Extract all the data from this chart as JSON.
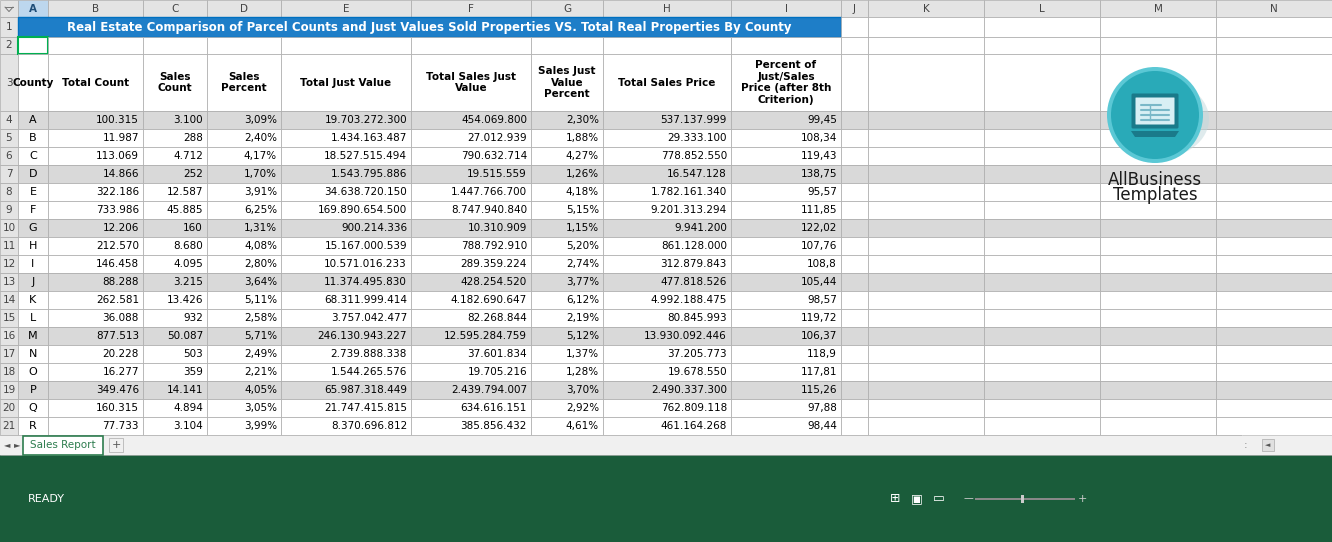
{
  "title": "Real Estate Comparison of Parcel Counts and Just Values Sold Properties VS. Total Real Properties By County",
  "col_headers": [
    "County",
    "Total Count",
    "Sales\nCount",
    "Sales\nPercent",
    "Total Just Value",
    "Total Sales Just\nValue",
    "Sales Just\nValue\nPercent",
    "Total Sales Price",
    "Percent of\nJust/Sales\nPrice (after 8th\nCriterion)"
  ],
  "row_labels": [
    "A",
    "B",
    "C",
    "D",
    "E",
    "F",
    "G",
    "H",
    "I",
    "J",
    "K",
    "L",
    "M",
    "N",
    "O",
    "P",
    "Q",
    "R"
  ],
  "data": [
    [
      "100.315",
      "3.100",
      "3,09%",
      "19.703.272.300",
      "454.069.800",
      "2,30%",
      "537.137.999",
      "99,45"
    ],
    [
      "11.987",
      "288",
      "2,40%",
      "1.434.163.487",
      "27.012.939",
      "1,88%",
      "29.333.100",
      "108,34"
    ],
    [
      "113.069",
      "4.712",
      "4,17%",
      "18.527.515.494",
      "790.632.714",
      "4,27%",
      "778.852.550",
      "119,43"
    ],
    [
      "14.866",
      "252",
      "1,70%",
      "1.543.795.886",
      "19.515.559",
      "1,26%",
      "16.547.128",
      "138,75"
    ],
    [
      "322.186",
      "12.587",
      "3,91%",
      "34.638.720.150",
      "1.447.766.700",
      "4,18%",
      "1.782.161.340",
      "95,57"
    ],
    [
      "733.986",
      "45.885",
      "6,25%",
      "169.890.654.500",
      "8.747.940.840",
      "5,15%",
      "9.201.313.294",
      "111,85"
    ],
    [
      "12.206",
      "160",
      "1,31%",
      "900.214.336",
      "10.310.909",
      "1,15%",
      "9.941.200",
      "122,02"
    ],
    [
      "212.570",
      "8.680",
      "4,08%",
      "15.167.000.539",
      "788.792.910",
      "5,20%",
      "861.128.000",
      "107,76"
    ],
    [
      "146.458",
      "4.095",
      "2,80%",
      "10.571.016.233",
      "289.359.224",
      "2,74%",
      "312.879.843",
      "108,8"
    ],
    [
      "88.288",
      "3.215",
      "3,64%",
      "11.374.495.830",
      "428.254.520",
      "3,77%",
      "477.818.526",
      "105,44"
    ],
    [
      "262.581",
      "13.426",
      "5,11%",
      "68.311.999.414",
      "4.182.690.647",
      "6,12%",
      "4.992.188.475",
      "98,57"
    ],
    [
      "36.088",
      "932",
      "2,58%",
      "3.757.042.477",
      "82.268.844",
      "2,19%",
      "80.845.993",
      "119,72"
    ],
    [
      "877.513",
      "50.087",
      "5,71%",
      "246.130.943.227",
      "12.595.284.759",
      "5,12%",
      "13.930.092.446",
      "106,37"
    ],
    [
      "20.228",
      "503",
      "2,49%",
      "2.739.888.338",
      "37.601.834",
      "1,37%",
      "37.205.773",
      "118,9"
    ],
    [
      "16.277",
      "359",
      "2,21%",
      "1.544.265.576",
      "19.705.216",
      "1,28%",
      "19.678.550",
      "117,81"
    ],
    [
      "349.476",
      "14.141",
      "4,05%",
      "65.987.318.449",
      "2.439.794.007",
      "3,70%",
      "2.490.337.300",
      "115,26"
    ],
    [
      "160.315",
      "4.894",
      "3,05%",
      "21.747.415.815",
      "634.616.151",
      "2,92%",
      "762.809.118",
      "97,88"
    ],
    [
      "77.733",
      "3.104",
      "3,99%",
      "8.370.696.812",
      "385.856.432",
      "4,61%",
      "461.164.268",
      "98,44"
    ]
  ],
  "gray_rows": [
    0,
    3,
    6,
    9,
    12,
    15
  ],
  "title_bg": "#1e7ec8",
  "title_color": "#ffffff",
  "row_alt_color": "#d9d9d9",
  "row_normal_color": "#ffffff",
  "tab_bg": "#ffffff",
  "tab_color": "#2e7d4f",
  "bottom_bar_color": "#1a5c3a",
  "ready_text": "READY",
  "sheet_tab": "Sales Report",
  "logo_text_line1": "AllBusiness",
  "logo_text_line2": "Templates",
  "col_header_selected_bg": "#bdd7ee",
  "col_header_bg": "#e4e4e4",
  "row_num_bg": "#e4e4e4",
  "border_color": "#aaaaaa",
  "header_row_color": "#d9d9d9",
  "scrollbar_area": "#f0f0f0"
}
